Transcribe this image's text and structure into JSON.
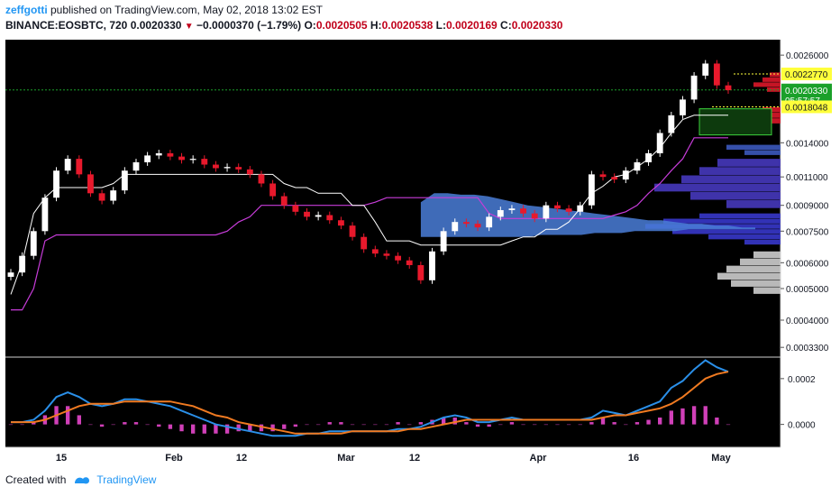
{
  "header": {
    "user": "zeffgotti",
    "published": "published on TradingView.com, May 02, 2018 13:02 EST"
  },
  "symbol_line": {
    "symbol": "BINANCE:EOSBTC, 720",
    "last": "0.0020330",
    "arrow": "▼",
    "change": "−0.0000370 (−1.79%)",
    "o_label": "O:",
    "o": "0.0020505",
    "h_label": "H:",
    "h": "0.0020538",
    "l_label": "L:",
    "l": "0.0020169",
    "c_label": "C:",
    "c": "0.0020330"
  },
  "footer": {
    "created_with": "Created with",
    "brand": "TradingView"
  },
  "colors": {
    "background": "#000000",
    "up_candle": "#ffffff",
    "down_candle": "#e8192c",
    "baseline_line": "#ffffff",
    "conversion_line": "#c73cd9",
    "cloud": "#4a7ed8",
    "macd_line": "#2a8fe8",
    "signal_line": "#f07a21",
    "histogram": "#d040b8",
    "last_price_label": "#1ba02a",
    "highlight_label": "#ffff3b"
  },
  "chart_data": [
    {
      "type": "line",
      "title": "",
      "scale": "log",
      "x_labels": [
        "15",
        "Feb",
        "12",
        "Mar",
        "12",
        "Apr",
        "16",
        "May"
      ],
      "y_ticks": [
        "0.0026000",
        "0.0022770",
        "0.0020330",
        "05:57:57",
        "0.0018048",
        "0.0014000",
        "0.0011000",
        "0.0009000",
        "0.0007500",
        "0.0006000",
        "0.0005000",
        "0.0004000",
        "0.0003300"
      ],
      "y_tick_values": [
        0.0026,
        0.002277,
        0.002033,
        null,
        0.0018048,
        0.0014,
        0.0011,
        0.0009,
        0.00075,
        0.0006,
        0.0005,
        0.0004,
        0.00033
      ],
      "ylim": [
        0.00031,
        0.0029
      ],
      "price_labels": [
        {
          "text": "0.0022770",
          "value": 0.002277,
          "style": "highlight"
        },
        {
          "text": "0.0020330",
          "value": 0.002033,
          "style": "last"
        },
        {
          "text": "05:57:57",
          "value": 0.00189,
          "style": "last"
        },
        {
          "text": "0.0018048",
          "value": 0.0018048,
          "style": "highlight"
        }
      ],
      "close_series": [
        0.00056,
        0.00063,
        0.00075,
        0.00095,
        0.00115,
        0.00125,
        0.00112,
        0.00098,
        0.00093,
        0.001,
        0.00115,
        0.00122,
        0.00128,
        0.0013,
        0.00127,
        0.00124,
        0.00125,
        0.0012,
        0.00117,
        0.00118,
        0.00116,
        0.00112,
        0.00105,
        0.00096,
        0.0009,
        0.00086,
        0.00083,
        0.00084,
        0.00081,
        0.00078,
        0.00072,
        0.00066,
        0.00064,
        0.00063,
        0.00061,
        0.00059,
        0.00053,
        0.00065,
        0.00075,
        0.0008,
        0.00079,
        0.00077,
        0.00083,
        0.00087,
        0.00088,
        0.00085,
        0.00082,
        0.0009,
        0.00088,
        0.00086,
        0.0009,
        0.00112,
        0.0011,
        0.00108,
        0.00115,
        0.00122,
        0.0013,
        0.0015,
        0.0017,
        0.0019,
        0.00225,
        0.00245,
        0.0021,
        0.00203
      ],
      "baseline_series": [
        0.00048,
        0.0006,
        0.00085,
        0.00095,
        0.00102,
        0.00102,
        0.00102,
        0.00102,
        0.00102,
        0.00105,
        0.00112,
        0.00112,
        0.00112,
        0.00112,
        0.00112,
        0.00112,
        0.00112,
        0.00112,
        0.00112,
        0.00112,
        0.00112,
        0.00112,
        0.00112,
        0.00112,
        0.00105,
        0.00102,
        0.00102,
        0.00098,
        0.00098,
        0.00098,
        0.0009,
        0.0009,
        0.0008,
        0.0007,
        0.0007,
        0.0007,
        0.00068,
        0.00068,
        0.00068,
        0.00068,
        0.00068,
        0.00068,
        0.00068,
        0.00068,
        0.0007,
        0.00072,
        0.00072,
        0.00076,
        0.00076,
        0.0008,
        0.00088,
        0.00098,
        0.00103,
        0.0011,
        0.00112,
        0.00118,
        0.00125,
        0.00135,
        0.0015,
        0.00165,
        0.0017,
        0.0017,
        0.0017,
        0.0017
      ],
      "conversion_series": [
        0.00043,
        0.00043,
        0.0005,
        0.0007,
        0.00073,
        0.00073,
        0.00073,
        0.00073,
        0.00073,
        0.00073,
        0.00073,
        0.00073,
        0.00073,
        0.00073,
        0.00073,
        0.00073,
        0.00073,
        0.00073,
        0.00073,
        0.00075,
        0.0008,
        0.00083,
        0.0009,
        0.0009,
        0.0009,
        0.0009,
        0.0009,
        0.0009,
        0.0009,
        0.0009,
        0.0009,
        0.0009,
        0.00092,
        0.00095,
        0.00095,
        0.00095,
        0.00095,
        0.00095,
        0.00095,
        0.00095,
        0.00095,
        0.00095,
        0.00085,
        0.00082,
        0.00082,
        0.00082,
        0.00082,
        0.00082,
        0.00082,
        0.00082,
        0.00082,
        0.00082,
        0.00082,
        0.00084,
        0.00086,
        0.0009,
        0.00098,
        0.00105,
        0.00115,
        0.00125,
        0.00145,
        0.00145,
        0.00145,
        0.00145
      ],
      "cloud_top": [
        0.00092,
        0.00098,
        0.00098,
        0.00097,
        0.00097,
        0.00096,
        0.00094,
        0.00092,
        0.0009,
        0.00089,
        0.00088,
        0.00087,
        0.00086,
        0.00085,
        0.00084,
        0.00083,
        0.00082,
        0.00081,
        0.00081,
        0.0008,
        0.00079,
        0.00079,
        0.00078,
        0.00078,
        0.00077,
        0.00077
      ],
      "cloud_bottom": [
        0.00072,
        0.00072,
        0.00072,
        0.00072,
        0.00072,
        0.00072,
        0.00072,
        0.00072,
        0.00072,
        0.00073,
        0.00073,
        0.00073,
        0.00073,
        0.00074,
        0.00074,
        0.00074,
        0.00075,
        0.00075,
        0.00075,
        0.00075,
        0.00076,
        0.00076,
        0.00076,
        0.00076,
        0.00076,
        0.00076
      ],
      "cloud_start_index": 36
    },
    {
      "type": "line",
      "title": "",
      "y_ticks": [
        "0.0002",
        "0.0000"
      ],
      "y_tick_values": [
        0.0002,
        0.0
      ],
      "ylim": [
        -0.0001,
        0.00029
      ],
      "series": [
        {
          "values": [
            1e-05,
            1e-05,
            2e-05,
            6e-05,
            0.00012,
            0.00014,
            0.00012,
            9e-05,
            8e-05,
            9e-05,
            0.00011,
            0.00011,
            0.0001,
            9e-05,
            8e-05,
            6e-05,
            4e-05,
            2e-05,
            0.0,
            -1e-05,
            -2e-05,
            -3e-05,
            -4e-05,
            -5e-05,
            -5e-05,
            -5e-05,
            -4e-05,
            -4e-05,
            -3e-05,
            -3e-05,
            -3e-05,
            -3e-05,
            -3e-05,
            -3e-05,
            -2e-05,
            -2e-05,
            -1e-05,
            1e-05,
            3e-05,
            4e-05,
            3e-05,
            1e-05,
            1e-05,
            2e-05,
            3e-05,
            2e-05,
            2e-05,
            2e-05,
            2e-05,
            2e-05,
            2e-05,
            3e-05,
            6e-05,
            5e-05,
            4e-05,
            6e-05,
            8e-05,
            0.0001,
            0.00016,
            0.00019,
            0.00024,
            0.00028,
            0.00025,
            0.00023
          ]
        },
        {
          "values": [
            1e-05,
            1e-05,
            1e-05,
            2e-05,
            4e-05,
            6e-05,
            8e-05,
            9e-05,
            9e-05,
            9e-05,
            0.0001,
            0.0001,
            0.0001,
            0.0001,
            0.0001,
            9e-05,
            8e-05,
            6e-05,
            4e-05,
            3e-05,
            1e-05,
            0.0,
            -1e-05,
            -2e-05,
            -3e-05,
            -4e-05,
            -4e-05,
            -4e-05,
            -4e-05,
            -4e-05,
            -3e-05,
            -3e-05,
            -3e-05,
            -3e-05,
            -3e-05,
            -2e-05,
            -2e-05,
            -1e-05,
            0.0,
            1e-05,
            2e-05,
            2e-05,
            2e-05,
            2e-05,
            2e-05,
            2e-05,
            2e-05,
            2e-05,
            2e-05,
            2e-05,
            2e-05,
            2e-05,
            3e-05,
            4e-05,
            4e-05,
            5e-05,
            6e-05,
            7e-05,
            9e-05,
            0.00012,
            0.00016,
            0.0002,
            0.00022,
            0.00023
          ]
        }
      ],
      "histogram": [
        0.0,
        0.0,
        1e-05,
        4e-05,
        8e-05,
        8e-05,
        4e-05,
        0.0,
        -1e-05,
        0.0,
        1e-05,
        1e-05,
        0.0,
        -1e-05,
        -2e-05,
        -3e-05,
        -4e-05,
        -4e-05,
        -4e-05,
        -4e-05,
        -3e-05,
        -3e-05,
        -3e-05,
        -3e-05,
        -2e-05,
        -1e-05,
        0.0,
        0.0,
        1e-05,
        1e-05,
        0.0,
        0.0,
        0.0,
        0.0,
        1e-05,
        0.0,
        1e-05,
        2e-05,
        3e-05,
        3e-05,
        1e-05,
        -1e-05,
        -1e-05,
        0.0,
        1e-05,
        0.0,
        0.0,
        0.0,
        0.0,
        0.0,
        0.0,
        1e-05,
        3e-05,
        1e-05,
        0.0,
        1e-05,
        2e-05,
        3e-05,
        6e-05,
        7e-05,
        8e-05,
        8e-05,
        3e-05,
        0.0
      ]
    }
  ]
}
